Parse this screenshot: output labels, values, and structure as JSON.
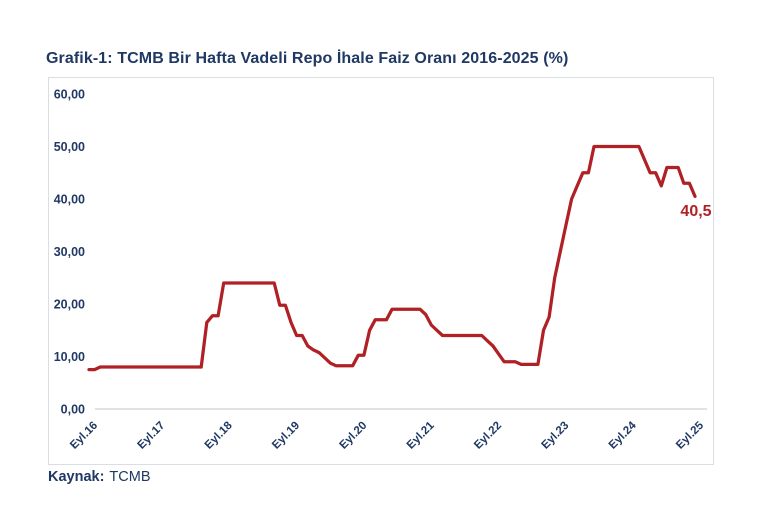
{
  "page": {
    "title": "Grafik-1: TCMB Bir Hafta Vadeli Repo İhale Faiz Oranı 2016-2025 (%)",
    "source_label": "Kaynak:",
    "source_value": "TCMB"
  },
  "colors": {
    "navy": "#1f3864",
    "line_red": "#b02126",
    "annotation_red": "#b02126",
    "plot_border": "#d9dde4",
    "zero_gridline": "#d9d9d9"
  },
  "chart_data": {
    "type": "line",
    "title": "TCMB Bir Hafta Vadeli Repo İhale Faiz Oranı 2016-2025 (%)",
    "xlabel": "",
    "ylabel": "",
    "ylim": [
      0,
      60
    ],
    "grid": "zero-baseline-only",
    "legend_position": "none",
    "y_ticks": [
      {
        "value": 0,
        "label": "0,00"
      },
      {
        "value": 10,
        "label": "10,00"
      },
      {
        "value": 20,
        "label": "20,00"
      },
      {
        "value": 30,
        "label": "30,00"
      },
      {
        "value": 40,
        "label": "40,00"
      },
      {
        "value": 50,
        "label": "50,00"
      },
      {
        "value": 60,
        "label": "60,00"
      }
    ],
    "x_ticks": [
      {
        "month": 0,
        "label": "Eyl.16"
      },
      {
        "month": 12,
        "label": "Eyl.17"
      },
      {
        "month": 24,
        "label": "Eyl.18"
      },
      {
        "month": 36,
        "label": "Eyl.19"
      },
      {
        "month": 48,
        "label": "Eyl.20"
      },
      {
        "month": 60,
        "label": "Eyl.21"
      },
      {
        "month": 72,
        "label": "Eyl.22"
      },
      {
        "month": 84,
        "label": "Eyl.23"
      },
      {
        "month": 96,
        "label": "Eyl.24"
      },
      {
        "month": 108,
        "label": "Eyl.25"
      }
    ],
    "series": [
      {
        "name": "Bir hafta vadeli repo ihale faiz oranı (%)",
        "x_start": "Eyl.16",
        "x_step": "1 ay",
        "monthly_values": [
          7.5,
          7.5,
          8,
          8,
          8,
          8,
          8,
          8,
          8,
          8,
          8,
          8,
          8,
          8,
          8,
          8,
          8,
          8,
          8,
          8,
          8,
          16.5,
          17.75,
          17.75,
          24,
          24,
          24,
          24,
          24,
          24,
          24,
          24,
          24,
          24,
          19.75,
          19.75,
          16.5,
          14,
          14,
          12,
          11.25,
          10.75,
          9.75,
          8.75,
          8.25,
          8.25,
          8.25,
          8.25,
          10.25,
          10.25,
          15,
          17,
          17,
          17,
          19,
          19,
          19,
          19,
          19,
          19,
          18,
          16,
          15,
          14,
          14,
          14,
          14,
          14,
          14,
          14,
          14,
          13,
          12,
          10.5,
          9,
          9,
          9,
          8.5,
          8.5,
          8.5,
          8.5,
          15,
          17.5,
          25,
          30,
          35,
          40,
          42.5,
          45,
          45,
          50,
          50,
          50,
          50,
          50,
          50,
          50,
          50,
          50,
          47.5,
          45,
          45,
          42.5,
          46,
          46,
          46,
          43,
          43,
          40.5
        ]
      }
    ],
    "end_annotation": {
      "text": "40,5",
      "value": 40.5
    }
  }
}
